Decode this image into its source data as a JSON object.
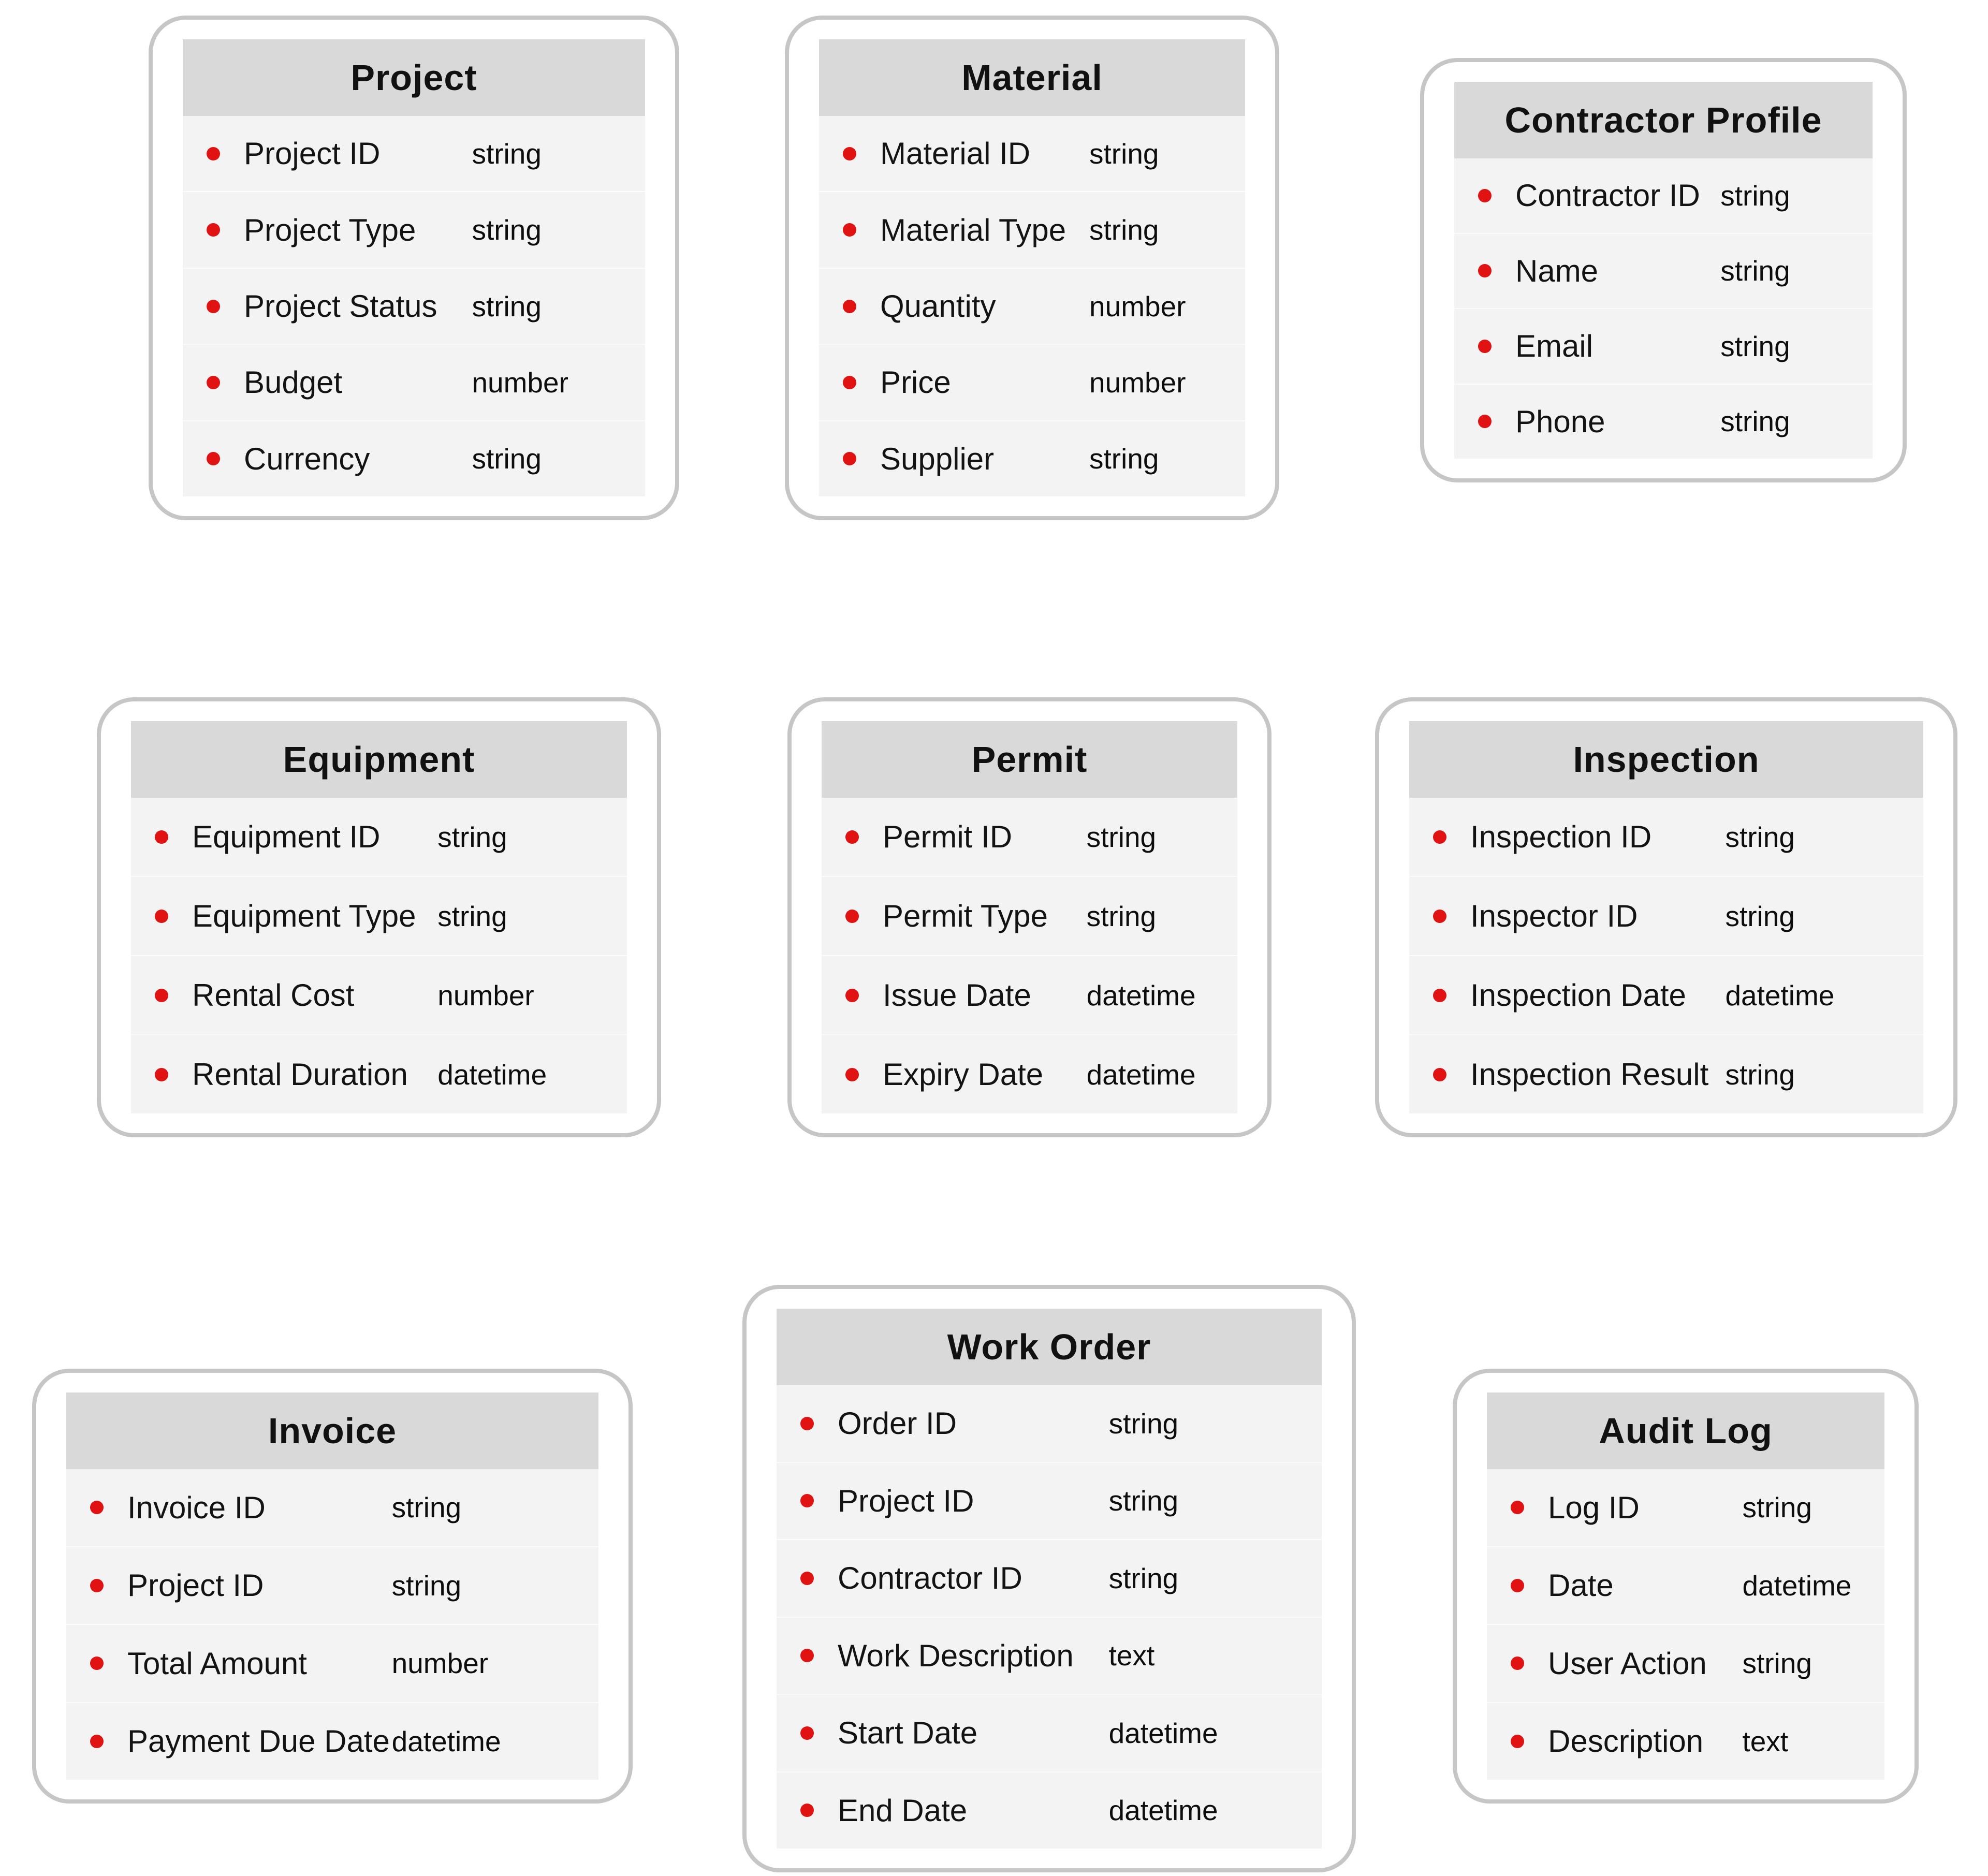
{
  "diagram": {
    "entities": [
      {
        "title": "Project",
        "fields": [
          {
            "name": "Project ID",
            "type": "string"
          },
          {
            "name": "Project Type",
            "type": "string"
          },
          {
            "name": "Project Status",
            "type": "string"
          },
          {
            "name": "Budget",
            "type": "number"
          },
          {
            "name": "Currency",
            "type": "string"
          }
        ]
      },
      {
        "title": "Material",
        "fields": [
          {
            "name": "Material ID",
            "type": "string"
          },
          {
            "name": "Material Type",
            "type": "string"
          },
          {
            "name": "Quantity",
            "type": "number"
          },
          {
            "name": "Price",
            "type": "number"
          },
          {
            "name": "Supplier",
            "type": "string"
          }
        ]
      },
      {
        "title": "Contractor Profile",
        "fields": [
          {
            "name": "Contractor ID",
            "type": "string"
          },
          {
            "name": "Name",
            "type": "string"
          },
          {
            "name": "Email",
            "type": "string"
          },
          {
            "name": "Phone",
            "type": "string"
          }
        ]
      },
      {
        "title": "Equipment",
        "fields": [
          {
            "name": "Equipment ID",
            "type": "string"
          },
          {
            "name": "Equipment Type",
            "type": "string"
          },
          {
            "name": "Rental Cost",
            "type": "number"
          },
          {
            "name": "Rental Duration",
            "type": "datetime"
          }
        ]
      },
      {
        "title": "Permit",
        "fields": [
          {
            "name": "Permit ID",
            "type": "string"
          },
          {
            "name": "Permit Type",
            "type": "string"
          },
          {
            "name": "Issue Date",
            "type": "datetime"
          },
          {
            "name": "Expiry Date",
            "type": "datetime"
          }
        ]
      },
      {
        "title": "Inspection",
        "fields": [
          {
            "name": "Inspection ID",
            "type": "string"
          },
          {
            "name": "Inspector ID",
            "type": "string"
          },
          {
            "name": "Inspection Date",
            "type": "datetime"
          },
          {
            "name": "Inspection Result",
            "type": "string"
          }
        ]
      },
      {
        "title": "Invoice",
        "fields": [
          {
            "name": "Invoice ID",
            "type": "string"
          },
          {
            "name": "Project ID",
            "type": "string"
          },
          {
            "name": "Total Amount",
            "type": "number"
          },
          {
            "name": "Payment Due Date",
            "type": "datetime"
          }
        ]
      },
      {
        "title": "Work Order",
        "fields": [
          {
            "name": "Order ID",
            "type": "string"
          },
          {
            "name": "Project ID",
            "type": "string"
          },
          {
            "name": "Contractor ID",
            "type": "string"
          },
          {
            "name": "Work Description",
            "type": "text"
          },
          {
            "name": "Start Date",
            "type": "datetime"
          },
          {
            "name": "End Date",
            "type": "datetime"
          }
        ]
      },
      {
        "title": "Audit Log",
        "fields": [
          {
            "name": "Log ID",
            "type": "string"
          },
          {
            "name": "Date",
            "type": "datetime"
          },
          {
            "name": "User Action",
            "type": "string"
          },
          {
            "name": "Description",
            "type": "text"
          }
        ]
      }
    ]
  },
  "colors": {
    "header_bg": "#d9d9d9",
    "body_bg": "#f3f3f3",
    "bullet": "#e01212",
    "card_border": "#c6c6c6",
    "text": "#131313"
  }
}
